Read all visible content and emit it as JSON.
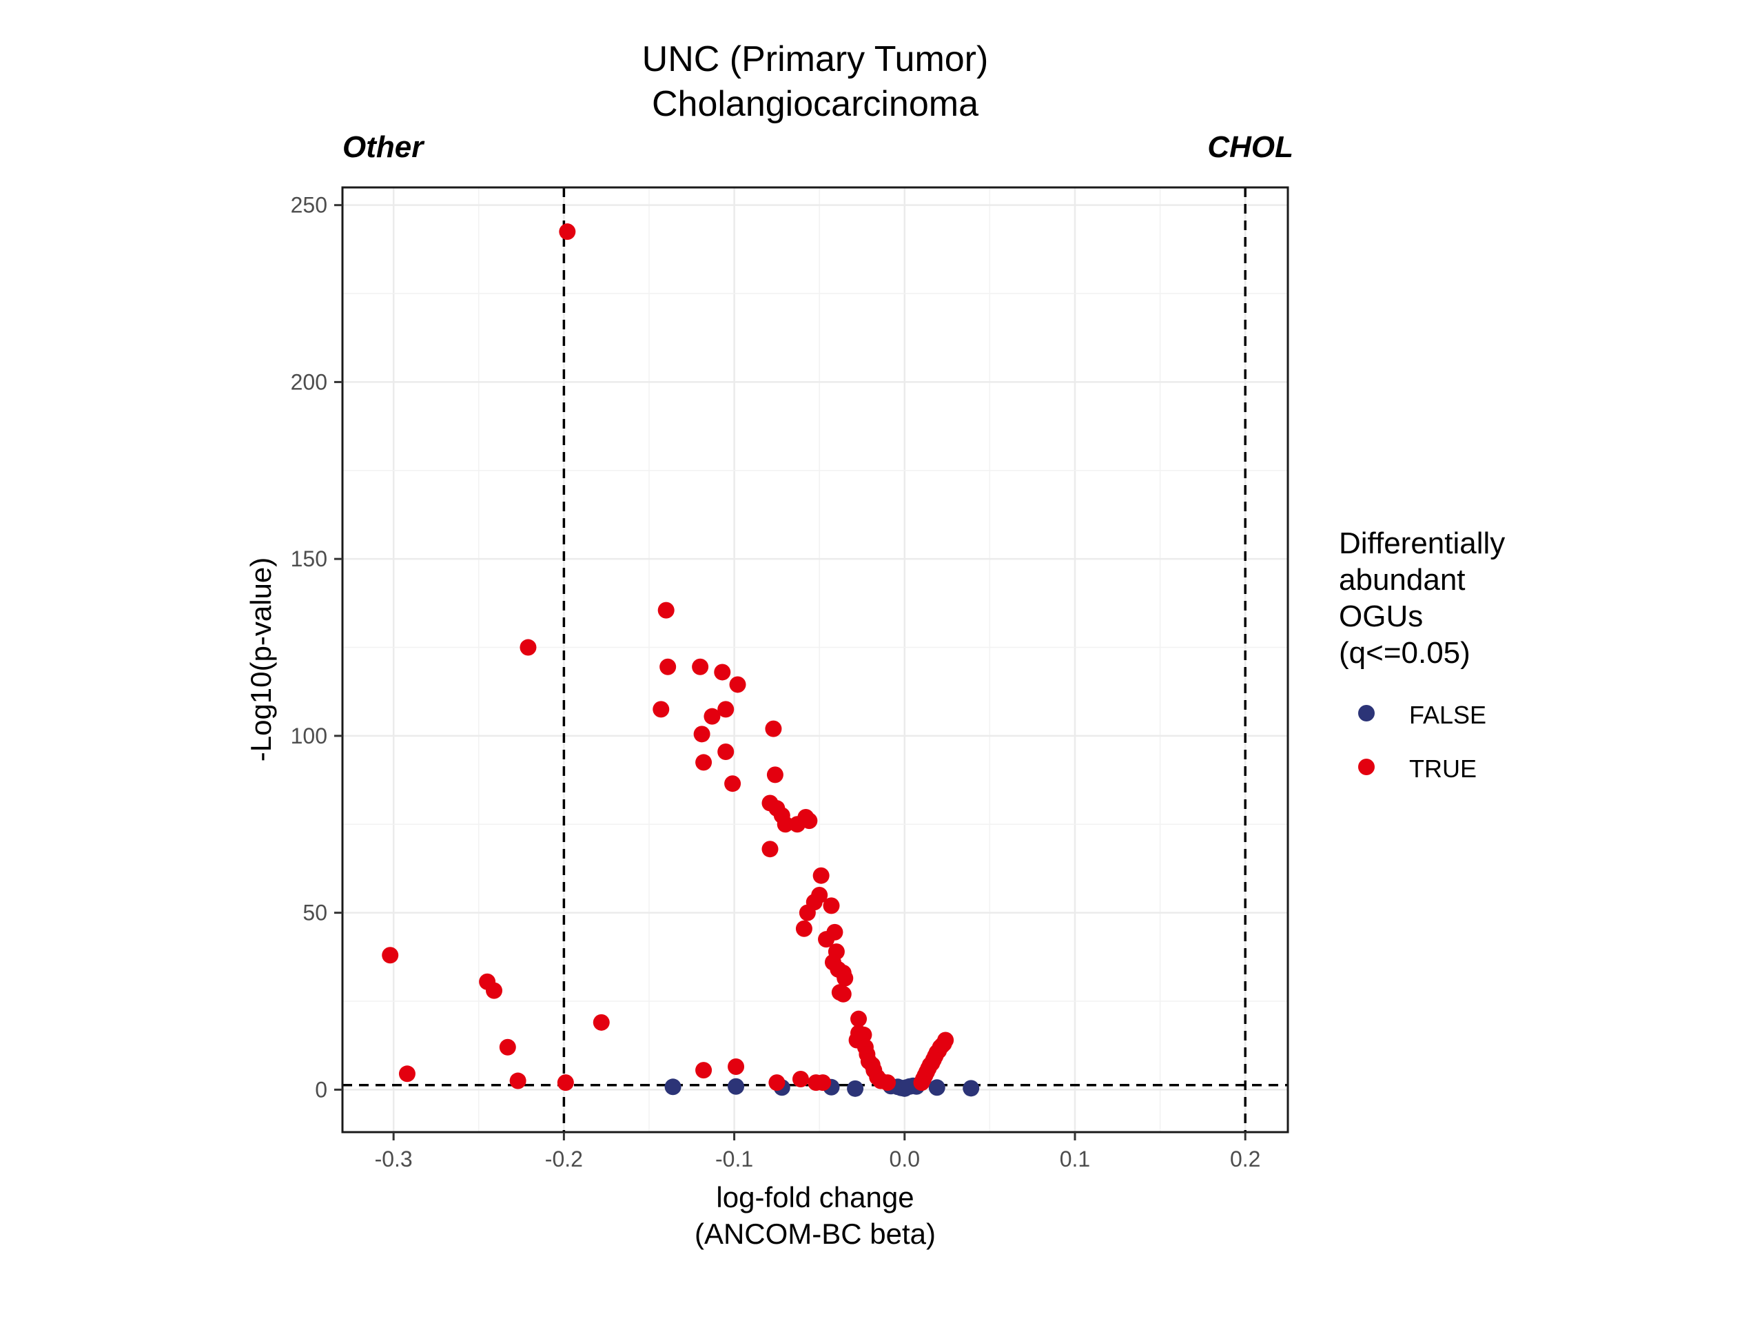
{
  "chart_data": {
    "type": "scatter",
    "title": [
      "UNC (Primary Tumor)",
      "Cholangiocarcinoma"
    ],
    "annotations": {
      "left": "Other",
      "right": "CHOL"
    },
    "xlabel": [
      "log-fold change",
      "(ANCOM-BC beta)"
    ],
    "ylabel": "-Log10(p-value)",
    "xlim": [
      -0.33,
      0.225
    ],
    "ylim": [
      -12,
      255
    ],
    "x_ticks": [
      -0.3,
      -0.2,
      -0.1,
      0.0,
      0.1,
      0.2
    ],
    "x_tick_labels": [
      "-0.3",
      "-0.2",
      "-0.1",
      "0.0",
      "0.1",
      "0.2"
    ],
    "y_ticks": [
      0,
      50,
      100,
      150,
      200,
      250
    ],
    "y_tick_labels": [
      "0",
      "50",
      "100",
      "150",
      "200",
      "250"
    ],
    "reference_lines": {
      "x": [
        -0.2,
        0.2
      ],
      "y": [
        1.3
      ]
    },
    "grid": true,
    "legend": {
      "title": [
        "Differentially",
        "abundant",
        "OGUs",
        "(q<=0.05)"
      ],
      "placement": "right",
      "entries": [
        {
          "label": "FALSE",
          "color": "#2c3477"
        },
        {
          "label": "TRUE",
          "color": "#e3000f"
        }
      ]
    },
    "series": [
      {
        "name": "FALSE",
        "color": "#2c3477",
        "points": [
          [
            -0.136,
            0.8
          ],
          [
            -0.099,
            0.9
          ],
          [
            -0.072,
            0.6
          ],
          [
            -0.043,
            0.7
          ],
          [
            -0.029,
            0.3
          ],
          [
            -0.008,
            1.0
          ],
          [
            -0.004,
            0.8
          ],
          [
            -0.002,
            0.5
          ],
          [
            0.0,
            0.3
          ],
          [
            0.001,
            0.6
          ],
          [
            0.003,
            0.9
          ],
          [
            0.005,
            1.1
          ],
          [
            0.007,
            0.9
          ],
          [
            0.019,
            0.6
          ],
          [
            0.039,
            0.4
          ]
        ]
      },
      {
        "name": "TRUE",
        "color": "#e3000f",
        "points": [
          [
            -0.198,
            242.5
          ],
          [
            -0.221,
            125
          ],
          [
            -0.302,
            38
          ],
          [
            -0.292,
            4.5
          ],
          [
            -0.245,
            30.5
          ],
          [
            -0.241,
            28
          ],
          [
            -0.233,
            12
          ],
          [
            -0.227,
            2.5
          ],
          [
            -0.199,
            2.0
          ],
          [
            -0.178,
            19
          ],
          [
            -0.14,
            135.5
          ],
          [
            -0.139,
            119.5
          ],
          [
            -0.143,
            107.5
          ],
          [
            -0.12,
            119.5
          ],
          [
            -0.119,
            100.5
          ],
          [
            -0.118,
            92.5
          ],
          [
            -0.113,
            105.5
          ],
          [
            -0.107,
            118
          ],
          [
            -0.105,
            107.5
          ],
          [
            -0.105,
            95.5
          ],
          [
            -0.101,
            86.5
          ],
          [
            -0.098,
            114.5
          ],
          [
            -0.077,
            102
          ],
          [
            -0.076,
            89
          ],
          [
            -0.079,
            81
          ],
          [
            -0.075,
            79.5
          ],
          [
            -0.072,
            77.5
          ],
          [
            -0.07,
            75
          ],
          [
            -0.079,
            68
          ],
          [
            -0.063,
            75
          ],
          [
            -0.058,
            77
          ],
          [
            -0.056,
            76
          ],
          [
            -0.049,
            60.5
          ],
          [
            -0.05,
            55
          ],
          [
            -0.053,
            53
          ],
          [
            -0.057,
            50
          ],
          [
            -0.043,
            52
          ],
          [
            -0.059,
            45.5
          ],
          [
            -0.041,
            44.5
          ],
          [
            -0.046,
            42.5
          ],
          [
            -0.04,
            39
          ],
          [
            -0.042,
            36
          ],
          [
            -0.039,
            34
          ],
          [
            -0.036,
            33
          ],
          [
            -0.035,
            31.5
          ],
          [
            -0.038,
            27.5
          ],
          [
            -0.036,
            27
          ],
          [
            -0.027,
            20
          ],
          [
            -0.024,
            15.5
          ],
          [
            -0.027,
            16
          ],
          [
            -0.028,
            14
          ],
          [
            -0.023,
            12
          ],
          [
            -0.022,
            10
          ],
          [
            -0.021,
            8
          ],
          [
            -0.019,
            7
          ],
          [
            -0.018,
            5.5
          ],
          [
            -0.016,
            3.5
          ],
          [
            -0.014,
            2.5
          ],
          [
            -0.118,
            5.5
          ],
          [
            -0.099,
            6.5
          ],
          [
            -0.075,
            2.0
          ],
          [
            -0.061,
            3.0
          ],
          [
            -0.052,
            2.0
          ],
          [
            -0.048,
            2.0
          ],
          [
            -0.01,
            2.0
          ],
          [
            0.01,
            2.0
          ],
          [
            0.011,
            3.0
          ],
          [
            0.012,
            4.0
          ],
          [
            0.013,
            5.0
          ],
          [
            0.014,
            6.0
          ],
          [
            0.015,
            7.0
          ],
          [
            0.016,
            7.5
          ],
          [
            0.017,
            8.5
          ],
          [
            0.018,
            9.5
          ],
          [
            0.019,
            10.5
          ],
          [
            0.02,
            11.0
          ],
          [
            0.021,
            12.0
          ],
          [
            0.022,
            12.5
          ],
          [
            0.023,
            13.0
          ],
          [
            0.024,
            14.0
          ]
        ]
      }
    ]
  }
}
